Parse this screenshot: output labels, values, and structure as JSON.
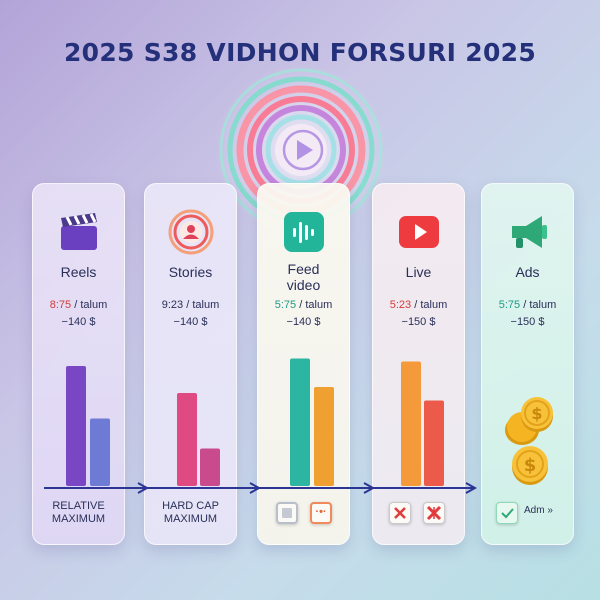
{
  "title": "2025 S38 VIDHON FORSURI 2025",
  "colors": {
    "title": "#24307a",
    "purple": "#7a47c4",
    "indigo": "#6e7bd4",
    "pink": "#e04a82",
    "rose": "#c94b8e",
    "teal": "#2cb5a0",
    "orange": "#f0a030",
    "coral": "#ec5b4a",
    "orange2": "#f59a3a",
    "green": "#2faa7a",
    "gold": "#f5b522"
  },
  "cards": [
    {
      "name": "Reels",
      "icon": "clapperboard-icon",
      "stat_prefix": "8:75",
      "stat_prefix_color": "#d23b3b",
      "stat_suffix": " / talum",
      "stat2": "−140 $",
      "bars": [
        0.8,
        0.45
      ],
      "footer": [
        "RELATIVE",
        "MAXIMUM"
      ]
    },
    {
      "name": "Stories",
      "icon": "stories-ring-icon",
      "stat_prefix": "9:23",
      "stat_prefix_color": "#2a2f58",
      "stat_suffix": " / talum",
      "stat2": "−140 $",
      "bars": [
        0.62,
        0.25
      ],
      "footer": [
        "HARD CAP",
        "MAXIMUM"
      ]
    },
    {
      "name": "Feed video",
      "icon": "audio-wave-icon",
      "stat_prefix": "5:75",
      "stat_prefix_color": "#1f9a86",
      "stat_suffix": " / talum",
      "stat2": "−140 $",
      "bars": [
        0.85,
        0.66
      ]
    },
    {
      "name": "Live",
      "icon": "play-button-icon",
      "stat_prefix": "5:23",
      "stat_prefix_color": "#d23b3b",
      "stat_suffix": " / talum",
      "stat2": "−150 $",
      "bars": [
        0.83,
        0.57
      ]
    },
    {
      "name": "Ads",
      "icon": "megaphone-icon",
      "stat_prefix": "5:75",
      "stat_prefix_color": "#1f9a86",
      "stat_suffix": " / talum",
      "stat2": "−150 $",
      "footer_label": "Adm »"
    }
  ]
}
